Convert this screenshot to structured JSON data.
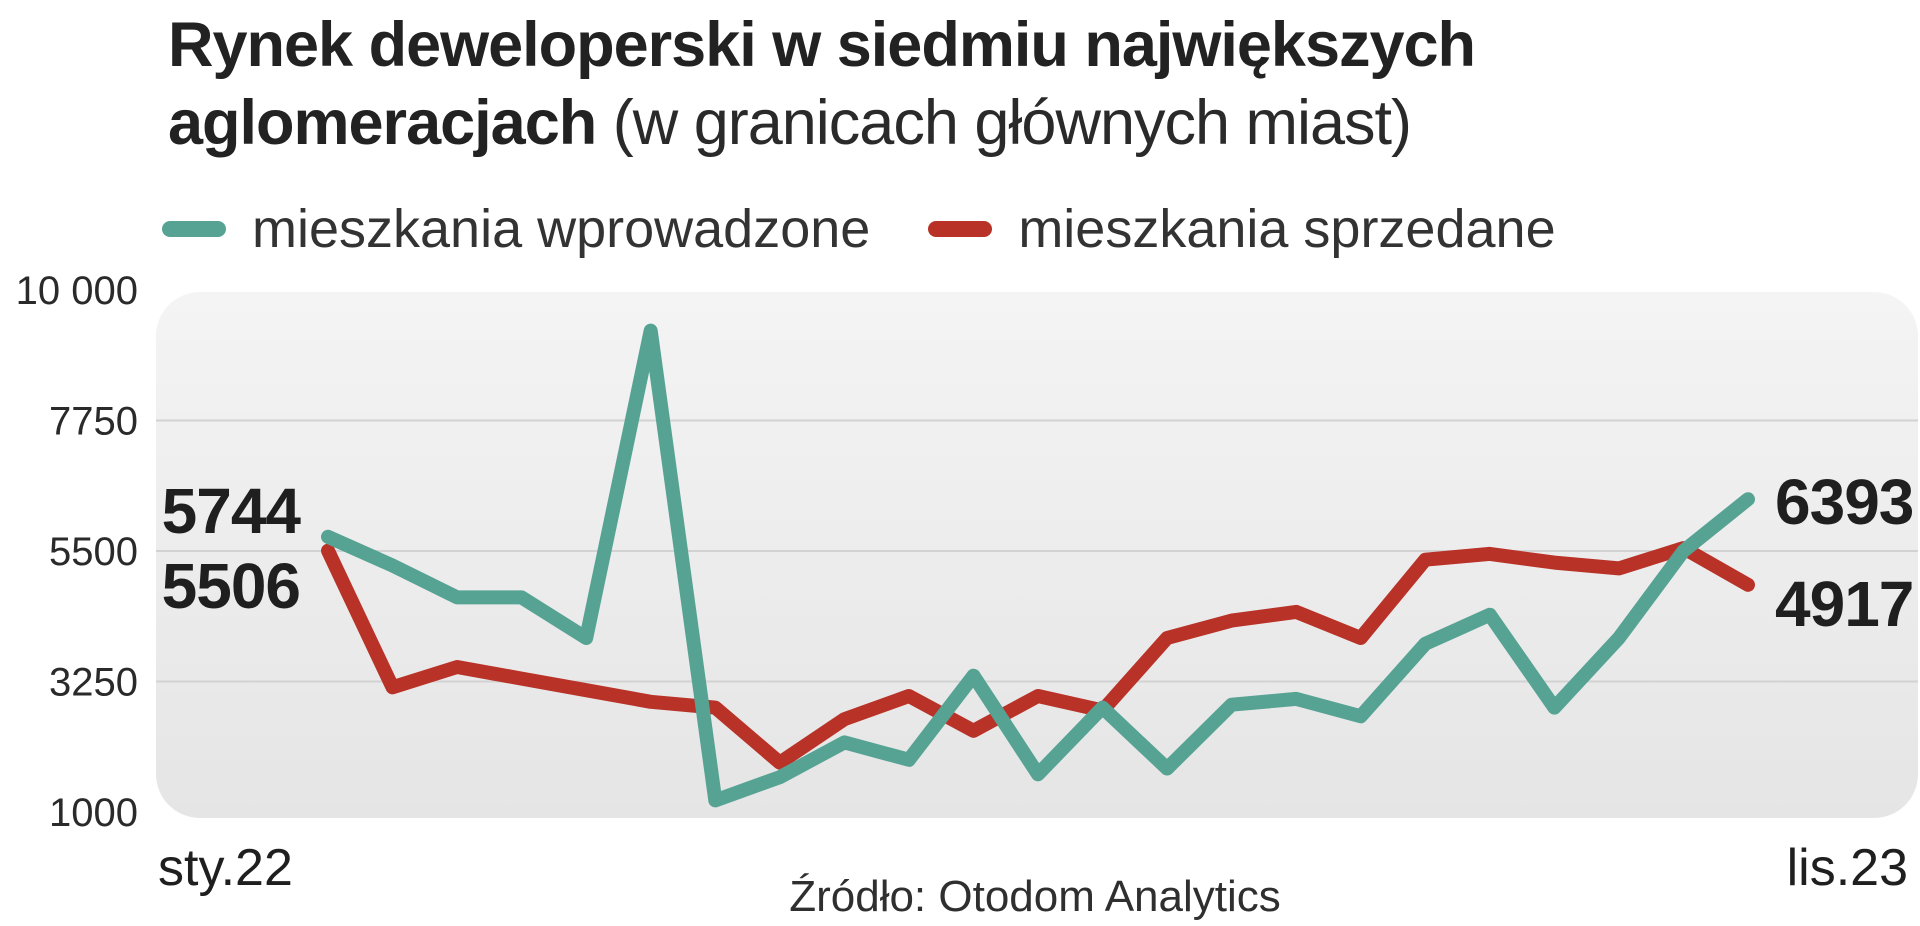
{
  "title": {
    "bold": "Rynek deweloperski w siedmiu największych aglomeracjach",
    "light": "(w granicach głównych miast)"
  },
  "legend": [
    {
      "label": "mieszkania wprowadzone",
      "color": "#56a394"
    },
    {
      "label": "mieszkania sprzedane",
      "color": "#b93228"
    }
  ],
  "source": "Źródło: Otodom Analytics",
  "chart_data": {
    "type": "line",
    "title": "Rynek deweloperski w siedmiu największych aglomeracjach (w granicach głównych miast)",
    "xlabel": "",
    "ylabel": "",
    "ylim": [
      1000,
      10000
    ],
    "yticks": [
      10000,
      7750,
      5500,
      3250,
      1000
    ],
    "ytick_labels": [
      "10 000",
      "7750",
      "5500",
      "3250",
      "1000"
    ],
    "x_start_label": "sty.22",
    "x_end_label": "lis.23",
    "grid": true,
    "series": [
      {
        "name": "mieszkania wprowadzone",
        "color": "#56a394",
        "values": [
          5744,
          5250,
          4700,
          4700,
          4000,
          9300,
          1200,
          1600,
          2200,
          1900,
          3350,
          1650,
          2800,
          1750,
          2850,
          2950,
          2650,
          3900,
          4400,
          2800,
          4000,
          5500,
          6393
        ],
        "start_label": "5744",
        "end_label": "6393"
      },
      {
        "name": "mieszkania sprzedane",
        "color": "#b93228",
        "values": [
          5506,
          3150,
          3500,
          3300,
          3100,
          2900,
          2800,
          1850,
          2600,
          3000,
          2400,
          3000,
          2750,
          4000,
          4300,
          4450,
          4000,
          5350,
          5450,
          5300,
          5200,
          5550,
          4917
        ],
        "start_label": "5506",
        "end_label": "4917"
      }
    ]
  }
}
